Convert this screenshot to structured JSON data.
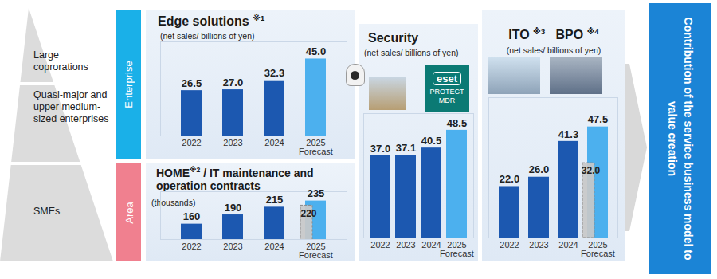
{
  "segments": [
    "Large coprorations",
    "Quasi-major and upper medium-sized enterprises",
    "SMEs"
  ],
  "tabs": [
    "Enterprise",
    "Area"
  ],
  "conclusion": "Contribution of the service business model to value creation",
  "chart_data": [
    {
      "type": "bar",
      "title": "Edge solutions ※1",
      "subtitle": "(net sales/ billions of yen)",
      "categories": [
        "2022",
        "2023",
        "2024",
        "2025\nForecast"
      ],
      "values": [
        26.5,
        27.0,
        32.3,
        45.0
      ],
      "value_labels": [
        "26.5",
        "27.0",
        "32.3",
        "45.0"
      ],
      "colors": [
        "#1c58b0",
        "#1c58b0",
        "#1c58b0",
        "#4cb0ee"
      ],
      "ylim": [
        0,
        55
      ],
      "data_labels": true,
      "tick_labels": "x"
    },
    {
      "type": "bar",
      "title": "HOME※2 / IT maintenance and operation contracts",
      "subtitle": "(thousands)",
      "categories": [
        "2022",
        "2023",
        "2024",
        "2025\nForecast"
      ],
      "series": [
        {
          "values": [
            160,
            190,
            215,
            235
          ],
          "colors": [
            "#1c58b0",
            "#1c58b0",
            "#1c58b0",
            "#4cb0ee"
          ]
        },
        {
          "values": [
            null,
            null,
            null,
            220
          ],
          "color": "#c8c8c8",
          "line_style": "dashed"
        }
      ],
      "ylim": [
        110,
        265
      ],
      "data_labels": true,
      "tick_labels": "x"
    },
    {
      "type": "bar",
      "title": "Security",
      "subtitle": "(net sales/ billions of yen)",
      "annotations": [
        "eset",
        "PROTECT",
        "MDR"
      ],
      "categories": [
        "2022",
        "2023",
        "2024",
        "2025\nForecast"
      ],
      "values": [
        37.0,
        37.1,
        40.5,
        48.5
      ],
      "value_labels": [
        "37.0",
        "37.1",
        "40.5",
        "48.5"
      ],
      "colors": [
        "#1c58b0",
        "#1c58b0",
        "#1c58b0",
        "#4cb0ee"
      ],
      "ylim": [
        0,
        56
      ],
      "data_labels": true,
      "tick_labels": "x"
    },
    {
      "type": "bar",
      "title": "ITO ※3   BPO ※4",
      "subtitle": "(net sales/ billions of yen)",
      "categories": [
        "2022",
        "2023",
        "2024",
        "2025\nForecast"
      ],
      "series": [
        {
          "values": [
            22.0,
            26.0,
            41.3,
            47.5
          ],
          "value_labels": [
            "22.0",
            "26.0",
            "41.3",
            "47.5"
          ],
          "colors": [
            "#1c58b0",
            "#1c58b0",
            "#1c58b0",
            "#4cb0ee"
          ]
        },
        {
          "values": [
            null,
            null,
            null,
            32.0
          ],
          "value_labels": [
            null,
            null,
            null,
            "32.0"
          ],
          "color": "#c8c8c8",
          "line_style": "dashed"
        }
      ],
      "ylim": [
        0,
        60
      ],
      "data_labels": true,
      "tick_labels": "x"
    }
  ]
}
